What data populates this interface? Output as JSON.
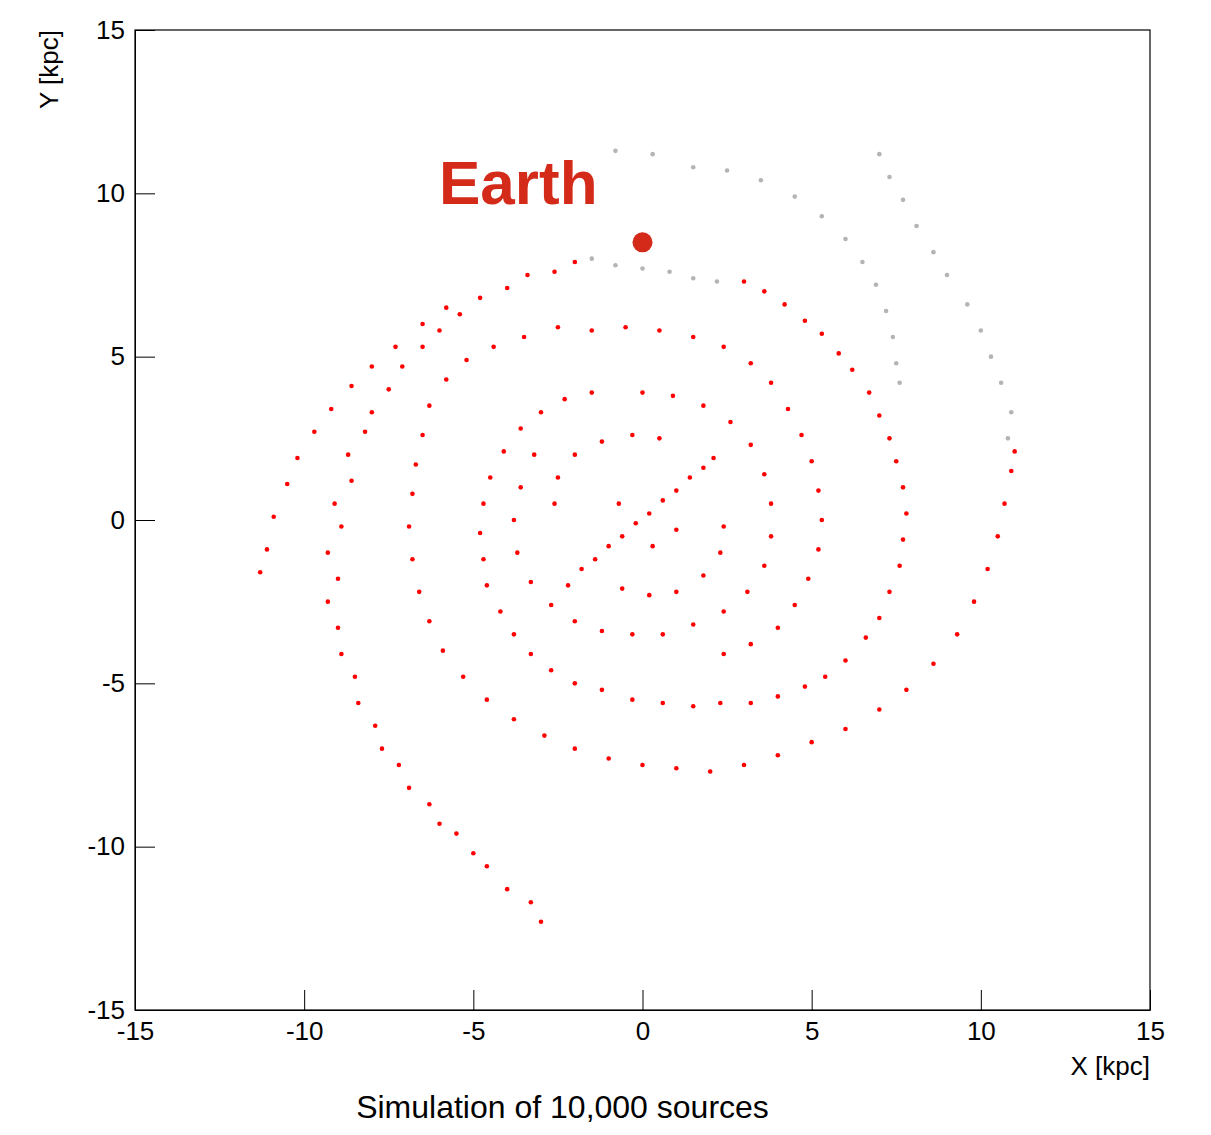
{
  "chart_data": {
    "type": "scatter",
    "title": "Simulation of 10,000 sources",
    "x_label": "X [kpc]",
    "y_label": "Y [kpc]",
    "xlim": [
      -15,
      15
    ],
    "ylim": [
      -15,
      15
    ],
    "xticks": [
      -15,
      -10,
      -5,
      0,
      5,
      10,
      15
    ],
    "yticks": [
      -15,
      -10,
      -5,
      0,
      5,
      10,
      15
    ],
    "grid": false,
    "marker": "dot",
    "series": [
      {
        "color": "#ff0000",
        "x": [
          -3.0,
          -3.3,
          -4.0,
          -4.6,
          -5.0,
          -5.5,
          -6.0,
          -6.3,
          -6.9,
          -7.2,
          -7.7,
          -7.9,
          -8.4,
          -8.5,
          -8.9,
          -9.0,
          -9.3,
          -9.0,
          -9.3,
          -8.9,
          -9.1,
          -8.6,
          -8.7,
          -8.2,
          -8.0,
          -7.5,
          -7.1,
          -6.5,
          -6.0,
          -5.4,
          -4.8,
          -4.0,
          -3.4,
          -2.6,
          -2.0,
          3.0,
          3.6,
          4.2,
          4.8,
          5.3,
          5.8,
          6.2,
          6.7,
          7.0,
          7.3,
          7.5,
          7.7,
          7.8,
          7.7,
          7.6,
          7.3,
          7.0,
          6.6,
          6.0,
          5.4,
          4.8,
          4.0,
          3.2,
          2.3,
          1.5,
          0.6,
          -0.3,
          -1.2,
          -2.0,
          -2.7,
          -3.3,
          -3.8,
          -4.2,
          -4.6,
          -4.7,
          -4.8,
          -4.7,
          -4.5,
          -4.1,
          -3.6,
          -3.0,
          -2.3,
          -1.5,
          -11.3,
          -11.1,
          -10.9,
          -10.5,
          -10.2,
          -9.7,
          -9.2,
          -8.6,
          -8.0,
          -7.3,
          -6.5,
          -5.8,
          -6.3,
          -5.8,
          -5.2,
          -4.4,
          -3.5,
          -2.5,
          -1.5,
          -0.5,
          0.5,
          1.5,
          2.4,
          3.2,
          3.8,
          4.3,
          4.7,
          5.0,
          5.2,
          5.3,
          5.2,
          4.9,
          4.5,
          4.0,
          3.2,
          2.4,
          -6.5,
          -6.7,
          -6.8,
          -6.9,
          -6.8,
          -6.6,
          -6.3,
          -5.9,
          -5.3,
          -4.6,
          -3.8,
          -2.9,
          -2.0,
          -1.0,
          0.0,
          1.0,
          2.0,
          3.0,
          4.0,
          5.0,
          6.0,
          7.0,
          7.8,
          8.6,
          9.3,
          9.8,
          10.2,
          10.5,
          10.7,
          10.9,
          11.0,
          -3.2,
          -3.6,
          -3.8,
          -3.7,
          -3.3,
          -2.7,
          -2.0,
          -1.2,
          -0.3,
          0.6,
          1.5,
          2.4,
          3.1,
          3.6,
          3.8,
          3.8,
          3.6,
          3.2,
          2.6,
          1.8,
          0.9,
          0.0,
          -2.6,
          -2.5,
          -2.0,
          -1.2,
          -0.3,
          0.5,
          2.4,
          2.3,
          1.8,
          1.0,
          0.2,
          -0.6,
          0.3,
          -0.7,
          1.0,
          -2.2,
          -1.8,
          -1.4,
          -1.0,
          -0.6,
          -0.2,
          0.2,
          0.6,
          1.0,
          1.4,
          1.8,
          2.1
        ],
        "values": [
          -12.3,
          -11.7,
          -11.3,
          -10.6,
          -10.2,
          -9.6,
          -9.3,
          -8.7,
          -8.2,
          -7.5,
          -7.0,
          -6.3,
          -5.6,
          -4.8,
          -4.1,
          -3.3,
          -2.5,
          -1.8,
          -1.0,
          -0.2,
          0.5,
          1.2,
          2.0,
          2.7,
          3.3,
          4.0,
          4.7,
          5.3,
          5.8,
          6.3,
          6.8,
          7.1,
          7.5,
          7.6,
          7.9,
          7.3,
          7.0,
          6.6,
          6.1,
          5.7,
          5.1,
          4.6,
          3.9,
          3.2,
          2.5,
          1.8,
          1.0,
          0.2,
          -0.6,
          -1.4,
          -2.2,
          -3.0,
          -3.6,
          -4.3,
          -4.8,
          -5.1,
          -5.4,
          -5.6,
          -5.6,
          -5.7,
          -5.6,
          -5.5,
          -5.2,
          -5.0,
          -4.6,
          -4.1,
          -3.5,
          -2.8,
          -2.0,
          -1.2,
          -0.4,
          0.5,
          1.3,
          2.1,
          2.8,
          3.3,
          3.7,
          3.9,
          -1.6,
          -0.9,
          0.1,
          1.1,
          1.9,
          2.7,
          3.4,
          4.1,
          4.7,
          5.3,
          6.0,
          6.5,
          3.5,
          4.3,
          4.9,
          5.3,
          5.6,
          5.9,
          5.8,
          5.9,
          5.8,
          5.6,
          5.3,
          4.8,
          4.2,
          3.4,
          2.6,
          1.8,
          0.9,
          0.0,
          -0.9,
          -1.8,
          -2.6,
          -3.3,
          -3.8,
          -4.1,
          2.6,
          1.7,
          0.8,
          -0.2,
          -1.2,
          -2.2,
          -3.1,
          -4.0,
          -4.8,
          -5.5,
          -6.1,
          -6.6,
          -7.0,
          -7.3,
          -7.5,
          -7.6,
          -7.7,
          -7.5,
          -7.2,
          -6.8,
          -6.4,
          -5.8,
          -5.2,
          -4.4,
          -3.5,
          -2.5,
          -1.5,
          -0.5,
          0.5,
          1.5,
          2.1,
          2.0,
          1.0,
          0.0,
          -1.0,
          -1.9,
          -2.6,
          -3.1,
          -3.4,
          -3.5,
          -3.5,
          -3.2,
          -2.8,
          -2.2,
          -1.4,
          -0.5,
          0.5,
          1.4,
          2.3,
          3.0,
          3.5,
          3.8,
          3.9,
          0.5,
          1.3,
          2.0,
          2.4,
          2.6,
          2.5,
          -0.2,
          -1.0,
          -1.7,
          -2.2,
          -2.3,
          -2.1,
          -0.8,
          0.5,
          -0.3,
          -2.0,
          -1.5,
          -1.2,
          -0.8,
          -0.5,
          -0.1,
          0.2,
          0.6,
          0.9,
          1.3,
          1.6,
          1.9
        ]
      },
      {
        "color": "#b4b4b4",
        "x": [
          10.8,
          10.9,
          10.6,
          10.3,
          10.0,
          9.6,
          9.0,
          8.6,
          8.1,
          7.7,
          7.3,
          7.0,
          1.5,
          2.5,
          3.5,
          4.5,
          5.3,
          6.0,
          6.5,
          6.9,
          7.2,
          7.4,
          7.5,
          7.6,
          -1.5,
          -0.8,
          0.0,
          0.8,
          1.5,
          2.2,
          -0.8,
          0.3
        ],
        "values": [
          2.5,
          3.3,
          4.2,
          5.0,
          5.8,
          6.6,
          7.5,
          8.2,
          9.0,
          9.8,
          10.5,
          11.2,
          10.8,
          10.7,
          10.4,
          9.9,
          9.3,
          8.6,
          7.9,
          7.2,
          6.4,
          5.6,
          4.8,
          4.2,
          8.0,
          7.8,
          7.7,
          7.6,
          7.4,
          7.3,
          11.3,
          11.2
        ]
      }
    ],
    "annotations": [
      {
        "text": "Earth",
        "x": 0,
        "y": 8.5,
        "color": "#d42a1a"
      }
    ]
  }
}
